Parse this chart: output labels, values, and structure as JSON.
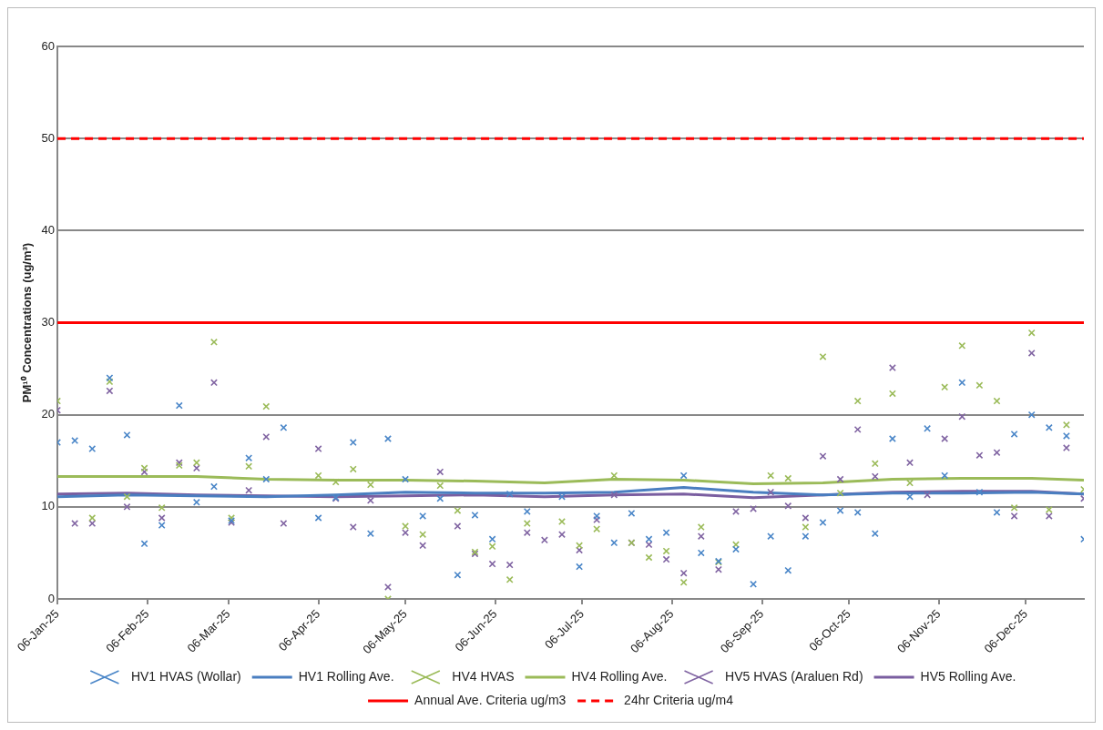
{
  "chart_data": {
    "type": "scatter",
    "ylabel": "PM¹⁰ Concentrations (ug/m³)",
    "x": [
      "2025-01-06",
      "2025-01-12",
      "2025-01-18",
      "2025-01-24",
      "2025-01-30",
      "2025-02-05",
      "2025-02-11",
      "2025-02-17",
      "2025-02-23",
      "2025-03-01",
      "2025-03-07",
      "2025-03-13",
      "2025-03-19",
      "2025-03-25",
      "2025-03-31",
      "2025-04-06",
      "2025-04-12",
      "2025-04-18",
      "2025-04-24",
      "2025-04-30",
      "2025-05-06",
      "2025-05-12",
      "2025-05-18",
      "2025-05-24",
      "2025-05-30",
      "2025-06-05",
      "2025-06-11",
      "2025-06-17",
      "2025-06-23",
      "2025-06-29",
      "2025-07-05",
      "2025-07-11",
      "2025-07-17",
      "2025-07-23",
      "2025-07-29",
      "2025-08-04",
      "2025-08-10",
      "2025-08-16",
      "2025-08-22",
      "2025-08-28",
      "2025-09-03",
      "2025-09-09",
      "2025-09-15",
      "2025-09-21",
      "2025-09-27",
      "2025-10-03",
      "2025-10-09",
      "2025-10-15",
      "2025-10-21",
      "2025-10-27",
      "2025-11-02",
      "2025-11-08",
      "2025-11-14",
      "2025-11-20",
      "2025-11-26",
      "2025-12-02",
      "2025-12-08",
      "2025-12-14",
      "2025-12-20",
      "2025-12-26"
    ],
    "series": [
      {
        "name": "HV1 HVAS (Wollar)",
        "marker": "cross",
        "color": "#4a86c8",
        "values": [
          17.0,
          17.2,
          16.3,
          24.0,
          17.8,
          6.0,
          8.0,
          21.0,
          10.5,
          12.2,
          8.5,
          15.3,
          13.0,
          18.6,
          null,
          8.8,
          11.0,
          17.0,
          7.1,
          17.4,
          13.0,
          9.0,
          10.9,
          2.6,
          9.1,
          6.5,
          11.4,
          9.5,
          null,
          11.1,
          3.5,
          9.0,
          6.1,
          9.3,
          6.5,
          7.2,
          13.4,
          5.0,
          4.1,
          5.4,
          1.6,
          6.8,
          3.1,
          6.8,
          8.3,
          9.6,
          9.4,
          7.1,
          17.4,
          11.1,
          18.5,
          13.4,
          23.5,
          11.6,
          9.4,
          17.9,
          20.0,
          18.6,
          17.7,
          6.5
        ]
      },
      {
        "name": "HV1 Rolling Ave.",
        "type": "line",
        "marker": "none",
        "color": "#4a7ec0",
        "x": [
          "2025-01-06",
          "2025-01-30",
          "2025-02-23",
          "2025-03-19",
          "2025-04-12",
          "2025-05-06",
          "2025-05-30",
          "2025-06-23",
          "2025-07-17",
          "2025-08-10",
          "2025-09-03",
          "2025-09-27",
          "2025-10-21",
          "2025-11-14",
          "2025-12-08",
          "2025-12-26"
        ],
        "values": [
          11.1,
          11.3,
          11.2,
          11.1,
          11.3,
          11.6,
          11.5,
          11.5,
          11.6,
          12.1,
          11.6,
          11.3,
          11.5,
          11.5,
          11.6,
          11.4
        ]
      },
      {
        "name": "HV4 HVAS",
        "marker": "cross",
        "color": "#9bbb59",
        "values": [
          21.5,
          null,
          8.8,
          23.6,
          11.1,
          14.2,
          9.9,
          14.5,
          14.8,
          27.9,
          8.8,
          14.4,
          20.9,
          null,
          null,
          13.4,
          12.7,
          14.1,
          12.4,
          0.0,
          7.9,
          7.0,
          12.3,
          9.6,
          5.1,
          5.7,
          2.1,
          8.2,
          null,
          8.4,
          5.8,
          7.6,
          13.4,
          6.1,
          4.5,
          5.2,
          1.8,
          7.8,
          4.0,
          5.9,
          null,
          13.4,
          13.1,
          7.8,
          26.3,
          11.5,
          21.5,
          14.7,
          22.3,
          12.6,
          null,
          23.0,
          27.5,
          23.2,
          21.5,
          9.9,
          28.9,
          9.7,
          18.9,
          11.9
        ]
      },
      {
        "name": "HV4 Rolling Ave.",
        "type": "line",
        "marker": "none",
        "color": "#9bbb59",
        "x": [
          "2025-01-06",
          "2025-01-30",
          "2025-02-23",
          "2025-03-19",
          "2025-04-12",
          "2025-05-06",
          "2025-05-30",
          "2025-06-23",
          "2025-07-17",
          "2025-08-10",
          "2025-09-03",
          "2025-09-27",
          "2025-10-21",
          "2025-11-14",
          "2025-12-08",
          "2025-12-26"
        ],
        "values": [
          13.3,
          13.3,
          13.3,
          13.0,
          12.9,
          12.9,
          12.8,
          12.6,
          13.0,
          12.9,
          12.5,
          12.6,
          13.0,
          13.1,
          13.1,
          12.9
        ]
      },
      {
        "name": "HV5 HVAS (Araluen Rd)",
        "marker": "cross",
        "color": "#8064a2",
        "values": [
          20.5,
          8.2,
          8.2,
          22.6,
          10.0,
          13.8,
          8.8,
          14.8,
          14.2,
          23.5,
          8.3,
          11.8,
          17.6,
          8.2,
          null,
          16.3,
          10.9,
          7.8,
          10.7,
          1.3,
          7.2,
          5.8,
          13.8,
          7.9,
          4.9,
          3.8,
          3.7,
          7.2,
          6.4,
          7.0,
          5.3,
          8.6,
          11.3,
          6.1,
          5.9,
          4.3,
          2.8,
          6.8,
          3.2,
          9.5,
          9.8,
          11.6,
          10.1,
          8.8,
          15.5,
          13.0,
          18.4,
          13.3,
          25.1,
          14.8,
          11.3,
          17.4,
          19.8,
          15.6,
          15.9,
          9.0,
          26.7,
          9.0,
          16.4,
          10.9
        ]
      },
      {
        "name": "HV5 Rolling Ave.",
        "type": "line",
        "marker": "none",
        "color": "#7a5ea0",
        "x": [
          "2025-01-06",
          "2025-01-30",
          "2025-02-23",
          "2025-03-19",
          "2025-04-12",
          "2025-05-06",
          "2025-05-30",
          "2025-06-23",
          "2025-07-17",
          "2025-08-10",
          "2025-09-03",
          "2025-09-27",
          "2025-10-21",
          "2025-11-14",
          "2025-12-08",
          "2025-12-26"
        ],
        "values": [
          11.4,
          11.5,
          11.3,
          11.2,
          11.1,
          11.2,
          11.3,
          11.1,
          11.3,
          11.4,
          11.0,
          11.3,
          11.6,
          11.7,
          11.7,
          11.4
        ]
      }
    ],
    "ref_lines": [
      {
        "axis": "y",
        "value": 30,
        "label": "Annual Ave. Criteria ug/m3",
        "color": "#ff0000",
        "line_style": "solid"
      },
      {
        "axis": "y",
        "value": 50,
        "label": "24hr Criteria ug/m4",
        "color": "#ff0000",
        "line_style": "dashed"
      }
    ],
    "xlim": [
      "2025-01-06",
      "2025-12-26"
    ],
    "xticks": [
      {
        "value": "2025-01-06",
        "label": "06-Jan-25"
      },
      {
        "value": "2025-02-06",
        "label": "06-Feb-25"
      },
      {
        "value": "2025-03-06",
        "label": "06-Mar-25"
      },
      {
        "value": "2025-04-06",
        "label": "06-Apr-25"
      },
      {
        "value": "2025-05-06",
        "label": "06-May-25"
      },
      {
        "value": "2025-06-06",
        "label": "06-Jun-25"
      },
      {
        "value": "2025-07-06",
        "label": "06-Jul-25"
      },
      {
        "value": "2025-08-06",
        "label": "06-Aug-25"
      },
      {
        "value": "2025-09-06",
        "label": "06-Sep-25"
      },
      {
        "value": "2025-10-06",
        "label": "06-Oct-25"
      },
      {
        "value": "2025-11-06",
        "label": "06-Nov-25"
      },
      {
        "value": "2025-12-06",
        "label": "06-Dec-25"
      }
    ],
    "ylim": [
      0,
      60
    ],
    "yticks": [
      0,
      10,
      20,
      30,
      40,
      50,
      60
    ],
    "grid": "y",
    "legend": "bottom"
  }
}
